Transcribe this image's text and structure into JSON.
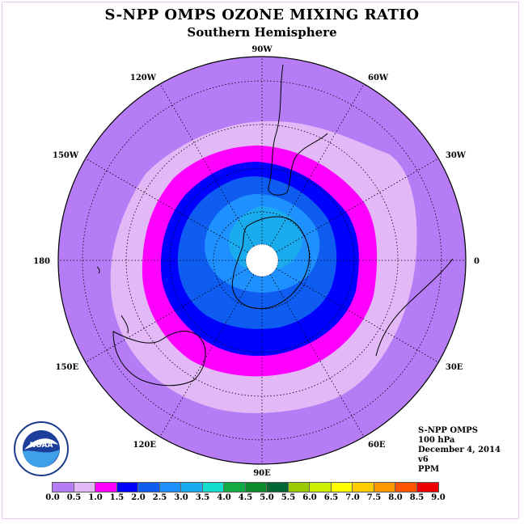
{
  "title": "S-NPP OMPS OZONE MIXING RATIO",
  "subtitle": "Southern Hemisphere",
  "longitude_labels": [
    {
      "text": "90W",
      "lon": -90
    },
    {
      "text": "60W",
      "lon": -60
    },
    {
      "text": "30W",
      "lon": -30
    },
    {
      "text": "0",
      "lon": 0
    },
    {
      "text": "30E",
      "lon": 30
    },
    {
      "text": "60E",
      "lon": 60
    },
    {
      "text": "90E",
      "lon": 90
    },
    {
      "text": "120E",
      "lon": 120
    },
    {
      "text": "150E",
      "lon": 150
    },
    {
      "text": "180",
      "lon": 180
    },
    {
      "text": "150W",
      "lon": -150
    },
    {
      "text": "120W",
      "lon": -120
    }
  ],
  "info": {
    "instrument": "S-NPP OMPS",
    "level": "100 hPa",
    "date": "December 4, 2014",
    "version": "v6",
    "units": "PPM"
  },
  "logo": {
    "text": "NOAA"
  },
  "colorbar": {
    "ticks": [
      "0.0",
      "0.5",
      "1.0",
      "1.5",
      "2.0",
      "2.5",
      "3.0",
      "3.5",
      "4.0",
      "4.5",
      "5.0",
      "5.5",
      "6.0",
      "6.5",
      "7.0",
      "7.5",
      "8.0",
      "8.5",
      "9.0"
    ],
    "colors": [
      "#b57cf5",
      "#e3b8f7",
      "#ff00ff",
      "#0000ff",
      "#0f5cf0",
      "#1e90ff",
      "#1aaaee",
      "#13ddcc",
      "#12aa44",
      "#0b8a2a",
      "#006633",
      "#99cc00",
      "#ccee00",
      "#ffff00",
      "#ffcc00",
      "#ff9900",
      "#ff5500",
      "#ee0000",
      "#8a5a3c"
    ]
  }
}
